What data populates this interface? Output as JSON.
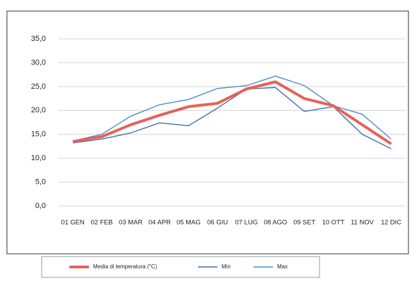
{
  "chart_data": {
    "type": "line",
    "categories": [
      "01 GEN",
      "02 FEB",
      "03 MAR",
      "04 APR",
      "05 MAG",
      "06 GIU",
      "07 LUG",
      "08 AGO",
      "09 SET",
      "10 OTT",
      "11 NOV",
      "12 DIC"
    ],
    "series": [
      {
        "name": "Media di temperatura (°C)",
        "color": "#e8605a",
        "values": [
          13.5,
          14.5,
          17.0,
          19.0,
          20.8,
          21.5,
          24.5,
          26.0,
          22.5,
          21.0,
          17.0,
          13.0
        ]
      },
      {
        "name": "Min",
        "color": "#3d6fb0",
        "values": [
          13.2,
          14.0,
          15.3,
          17.4,
          16.8,
          20.5,
          24.5,
          24.8,
          19.8,
          20.8,
          15.0,
          12.0
        ]
      },
      {
        "name": "Max",
        "color": "#4a8cc6",
        "values": [
          13.6,
          15.0,
          18.8,
          21.2,
          22.3,
          24.6,
          25.2,
          27.2,
          25.2,
          21.0,
          19.2,
          14.0
        ]
      }
    ],
    "ylim": [
      0,
      35
    ],
    "yticks": [
      {
        "value": 0,
        "label": "0,0"
      },
      {
        "value": 5,
        "label": "5,0"
      },
      {
        "value": 10,
        "label": "10,0"
      },
      {
        "value": 15,
        "label": "15,0"
      },
      {
        "value": 20,
        "label": "20,0"
      },
      {
        "value": 25,
        "label": "25,0"
      },
      {
        "value": 30,
        "label": "30,0"
      },
      {
        "value": 35,
        "label": "35,0"
      }
    ],
    "grid": true
  }
}
